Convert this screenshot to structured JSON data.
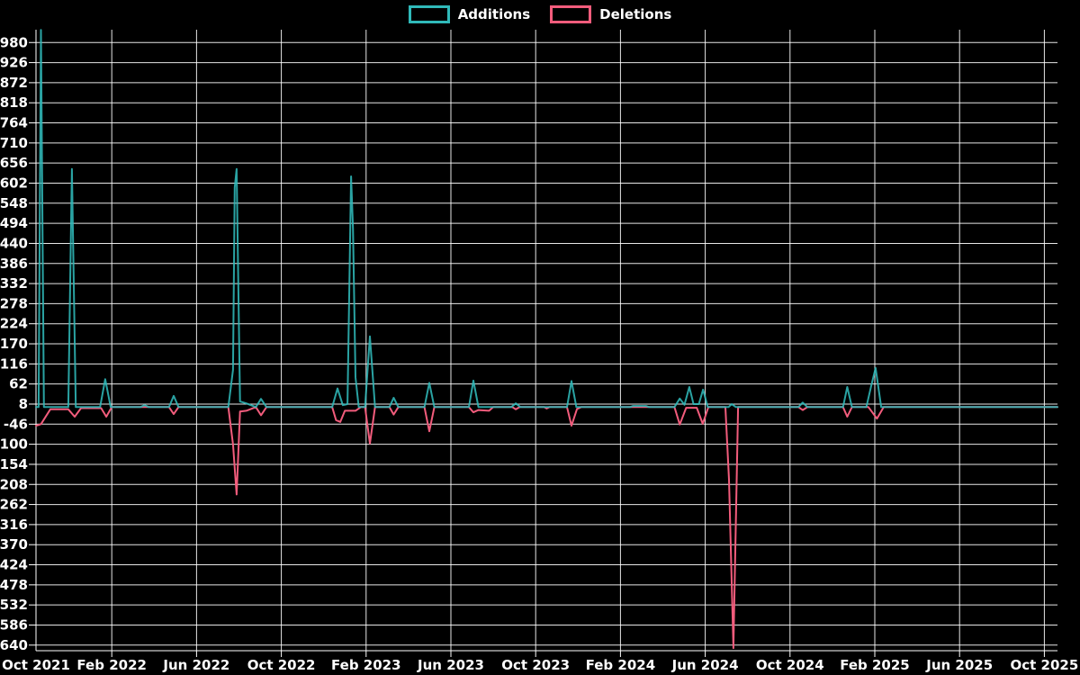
{
  "page": {
    "background": "#000000",
    "text_color": "#ffffff"
  },
  "chart_data": {
    "type": "line",
    "title": "",
    "description_visible_text_only": "Weekly additions and deletions line chart, black background, white grid",
    "grid": true,
    "legend_position": "top-center",
    "background": "#000000",
    "grid_color": "#ffffff",
    "axis_color": "#ffffff",
    "legend": [
      {
        "label": "Additions",
        "color": "#30b9b9"
      },
      {
        "label": "Deletions",
        "color": "#f25c7c"
      }
    ],
    "x_axis": {
      "tick_labels": [
        "Oct 2021",
        "Feb 2022",
        "Jun 2022",
        "Oct 2022",
        "Feb 2023",
        "Jun 2023",
        "Oct 2023",
        "Feb 2024",
        "Jun 2024",
        "Oct 2024",
        "Feb 2025",
        "Jun 2025",
        "Oct 2025"
      ],
      "tick_interval_months": 4,
      "range_months": [
        0.425,
        48.62
      ]
    },
    "y_axis": {
      "tick_labels": [
        980,
        926,
        872,
        818,
        764,
        710,
        656,
        602,
        548,
        494,
        440,
        386,
        332,
        278,
        224,
        170,
        116,
        62,
        8,
        -46,
        -100,
        -154,
        -208,
        -262,
        -316,
        -370,
        -424,
        -478,
        -532,
        -586,
        -640
      ],
      "range": [
        -655,
        1014.5
      ]
    },
    "series": [
      {
        "name": "Additions",
        "color": "#30b9b9",
        "points": [
          [
            0.42,
            0
          ],
          [
            0.55,
            0
          ],
          [
            0.66,
            1014
          ],
          [
            0.8,
            0
          ],
          [
            1.95,
            0
          ],
          [
            2.12,
            640
          ],
          [
            2.3,
            0
          ],
          [
            3.45,
            0
          ],
          [
            3.69,
            75
          ],
          [
            3.95,
            0
          ],
          [
            5.35,
            0
          ],
          [
            5.55,
            5
          ],
          [
            5.75,
            0
          ],
          [
            6.7,
            0
          ],
          [
            6.92,
            30
          ],
          [
            7.15,
            0
          ],
          [
            9.5,
            0
          ],
          [
            9.72,
            100
          ],
          [
            9.8,
            590
          ],
          [
            9.89,
            640
          ],
          [
            10.05,
            15
          ],
          [
            10.35,
            10
          ],
          [
            10.8,
            0
          ],
          [
            11.04,
            22
          ],
          [
            11.3,
            0
          ],
          [
            14.4,
            0
          ],
          [
            14.65,
            50
          ],
          [
            14.9,
            5
          ],
          [
            15.12,
            8
          ],
          [
            15.29,
            620
          ],
          [
            15.38,
            480
          ],
          [
            15.5,
            80
          ],
          [
            15.65,
            0
          ],
          [
            15.95,
            0
          ],
          [
            16.18,
            190
          ],
          [
            16.42,
            0
          ],
          [
            17.1,
            0
          ],
          [
            17.3,
            25
          ],
          [
            17.52,
            0
          ],
          [
            18.75,
            0
          ],
          [
            18.98,
            65
          ],
          [
            19.22,
            0
          ],
          [
            20.85,
            0
          ],
          [
            21.06,
            71
          ],
          [
            21.3,
            0
          ],
          [
            22.85,
            0
          ],
          [
            23.06,
            10
          ],
          [
            23.28,
            0
          ],
          [
            25.48,
            0
          ],
          [
            25.69,
            70
          ],
          [
            25.92,
            0
          ],
          [
            28.45,
            0
          ],
          [
            28.6,
            3
          ],
          [
            29.2,
            3
          ],
          [
            29.35,
            0
          ],
          [
            30.55,
            0
          ],
          [
            30.8,
            23
          ],
          [
            31.02,
            6
          ],
          [
            31.25,
            54
          ],
          [
            31.45,
            8
          ],
          [
            31.7,
            8
          ],
          [
            31.9,
            47
          ],
          [
            32.12,
            0
          ],
          [
            33.1,
            0
          ],
          [
            33.25,
            8
          ],
          [
            33.45,
            0
          ],
          [
            36.4,
            0
          ],
          [
            36.6,
            12
          ],
          [
            36.82,
            0
          ],
          [
            38.5,
            0
          ],
          [
            38.7,
            54
          ],
          [
            38.92,
            0
          ],
          [
            39.6,
            0
          ],
          [
            39.82,
            55
          ],
          [
            40.04,
            105
          ],
          [
            40.3,
            0
          ],
          [
            48.62,
            0
          ]
        ]
      },
      {
        "name": "Deletions",
        "color": "#f25c7c",
        "points": [
          [
            0.42,
            -50
          ],
          [
            0.66,
            -46
          ],
          [
            1.1,
            -6
          ],
          [
            1.95,
            -6
          ],
          [
            2.25,
            -26
          ],
          [
            2.55,
            -3
          ],
          [
            3.5,
            -3
          ],
          [
            3.74,
            -26
          ],
          [
            4.0,
            0
          ],
          [
            6.7,
            0
          ],
          [
            6.92,
            -19
          ],
          [
            7.15,
            0
          ],
          [
            9.5,
            0
          ],
          [
            9.72,
            -100
          ],
          [
            9.89,
            -235
          ],
          [
            10.05,
            -12
          ],
          [
            10.35,
            -10
          ],
          [
            10.8,
            0
          ],
          [
            11.04,
            -22
          ],
          [
            11.3,
            0
          ],
          [
            14.4,
            0
          ],
          [
            14.58,
            -35
          ],
          [
            14.78,
            -40
          ],
          [
            15.0,
            -10
          ],
          [
            15.5,
            -10
          ],
          [
            15.75,
            0
          ],
          [
            15.95,
            0
          ],
          [
            16.18,
            -98
          ],
          [
            16.42,
            0
          ],
          [
            17.1,
            0
          ],
          [
            17.3,
            -20
          ],
          [
            17.52,
            0
          ],
          [
            18.75,
            0
          ],
          [
            18.98,
            -65
          ],
          [
            19.22,
            0
          ],
          [
            20.85,
            0
          ],
          [
            21.06,
            -14
          ],
          [
            21.3,
            -8
          ],
          [
            21.8,
            -10
          ],
          [
            22.0,
            0
          ],
          [
            22.9,
            0
          ],
          [
            23.06,
            -6
          ],
          [
            23.25,
            0
          ],
          [
            24.4,
            0
          ],
          [
            24.52,
            -4
          ],
          [
            24.65,
            0
          ],
          [
            25.48,
            0
          ],
          [
            25.69,
            -50
          ],
          [
            25.95,
            -5
          ],
          [
            26.15,
            0
          ],
          [
            30.55,
            0
          ],
          [
            30.8,
            -47
          ],
          [
            31.1,
            -2
          ],
          [
            31.6,
            -2
          ],
          [
            31.88,
            -45
          ],
          [
            32.15,
            0
          ],
          [
            32.95,
            0
          ],
          [
            33.12,
            -195
          ],
          [
            33.33,
            -648
          ],
          [
            33.55,
            0
          ],
          [
            36.4,
            0
          ],
          [
            36.6,
            -8
          ],
          [
            36.82,
            0
          ],
          [
            38.5,
            0
          ],
          [
            38.7,
            -26
          ],
          [
            38.92,
            0
          ],
          [
            39.7,
            0
          ],
          [
            40.1,
            -31
          ],
          [
            40.42,
            0
          ],
          [
            48.62,
            0
          ]
        ]
      }
    ]
  }
}
